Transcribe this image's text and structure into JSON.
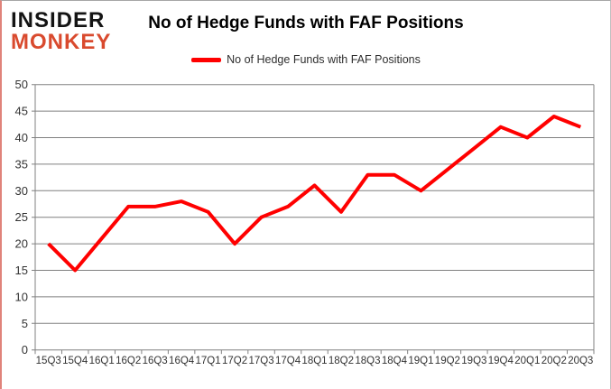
{
  "logo": {
    "line1": "INSIDER",
    "line2": "MONKEY",
    "line1_color": "#141414",
    "line2_color": "#d94a2e"
  },
  "title": "No of Hedge Funds with FAF Positions",
  "legend": {
    "label": "No of Hedge Funds with FAF Positions",
    "swatch_color": "#ff0000"
  },
  "chart_data": {
    "type": "line",
    "title": "No of Hedge Funds with FAF Positions",
    "categories": [
      "15Q3",
      "15Q4",
      "16Q1",
      "16Q2",
      "16Q3",
      "16Q4",
      "17Q1",
      "17Q2",
      "17Q3",
      "17Q4",
      "18Q1",
      "18Q2",
      "18Q3",
      "18Q4",
      "19Q1",
      "19Q2",
      "19Q3",
      "19Q4",
      "20Q1",
      "20Q2",
      "20Q3"
    ],
    "series": [
      {
        "name": "No of Hedge Funds with FAF Positions",
        "color": "#ff0000",
        "values": [
          20,
          15,
          21,
          27,
          27,
          28,
          26,
          20,
          25,
          27,
          31,
          26,
          33,
          33,
          30,
          34,
          38,
          42,
          40,
          44,
          42
        ]
      }
    ],
    "xlabel": "",
    "ylabel": "",
    "ylim": [
      0,
      50
    ],
    "ytick_interval": 5,
    "grid": true,
    "legend_position": "top-center",
    "gridline_color": "#808080",
    "axis_color": "#808080",
    "tick_label_color": "#333333",
    "line_width": 4
  }
}
